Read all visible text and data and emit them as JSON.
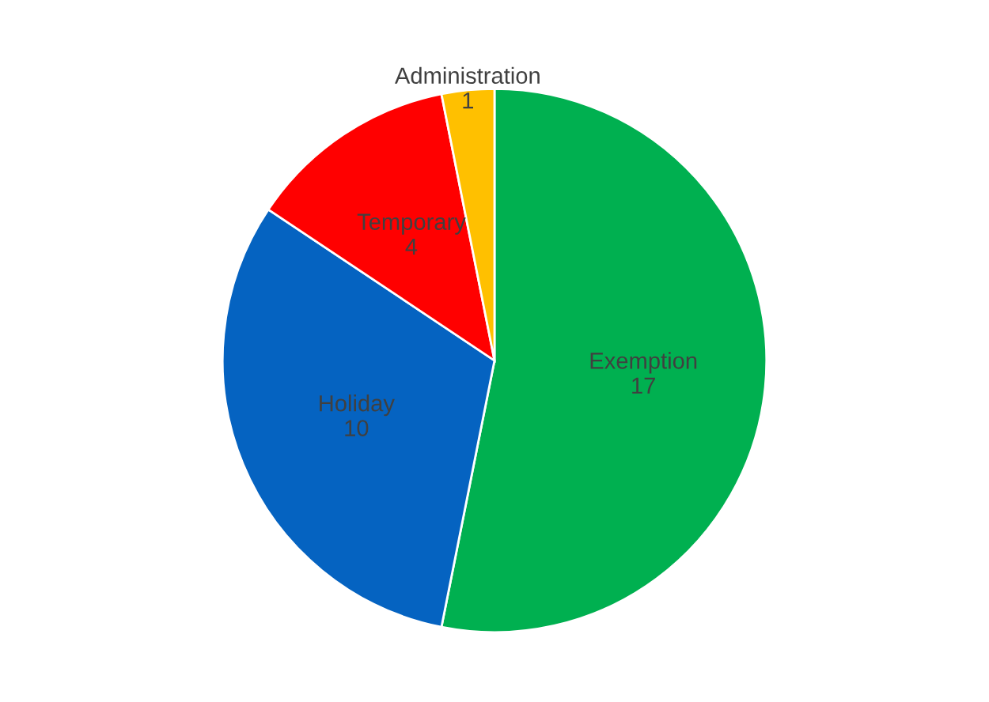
{
  "chart_data": {
    "type": "pie",
    "categories": [
      "Exemption",
      "Holiday",
      "Temporary",
      "Administration"
    ],
    "values": [
      17,
      10,
      4,
      1
    ],
    "colors": [
      "#00b050",
      "#0563c1",
      "#ff0000",
      "#ffc000"
    ],
    "data_labels": true
  }
}
